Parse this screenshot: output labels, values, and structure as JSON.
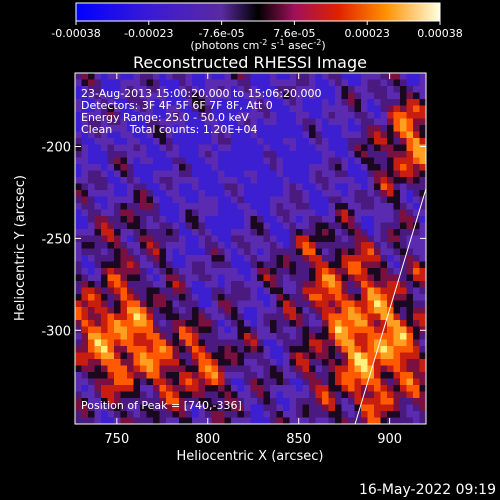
{
  "chart_data": {
    "type": "heatmap",
    "title": "Reconstructed RHESSI Image",
    "xlabel": "Heliocentric X (arcsec)",
    "ylabel": "Heliocentric Y (arcsec)",
    "xlim": [
      727,
      920
    ],
    "ylim": [
      -351,
      -160
    ],
    "x_ticks": [
      750,
      800,
      850,
      900
    ],
    "y_ticks": [
      -200,
      -250,
      -300
    ],
    "colorbar": {
      "ticks": [
        "-0.00038",
        "-0.00023",
        "-7.6e-05",
        "7.6e-05",
        "0.00023",
        "0.00038"
      ],
      "unit_parts": [
        "(photons cm",
        "-2",
        " s",
        "-1",
        " asec",
        "-2",
        ")"
      ],
      "range": [
        -0.00038,
        0.00038
      ]
    },
    "annotations": [
      "23-Aug-2013 15:00:20.000 to 15:06:20.000",
      "Detectors: 3F 4F 5F 6F 7F 8F, Att 0",
      "Energy Range: 25.0 - 50.0 keV",
      "Clean     Total counts: 1.20E+04"
    ],
    "peak_label": "Position of Peak = [740,-336]",
    "peak": [
      740,
      -336
    ],
    "limb_line": [
      [
        881,
        -351
      ],
      [
        920,
        -223
      ]
    ],
    "grid": false
  },
  "footer": {
    "timestamp": "16-May-2022 09:19"
  },
  "colors": {
    "background": "#000000",
    "text": "#ffffff"
  }
}
